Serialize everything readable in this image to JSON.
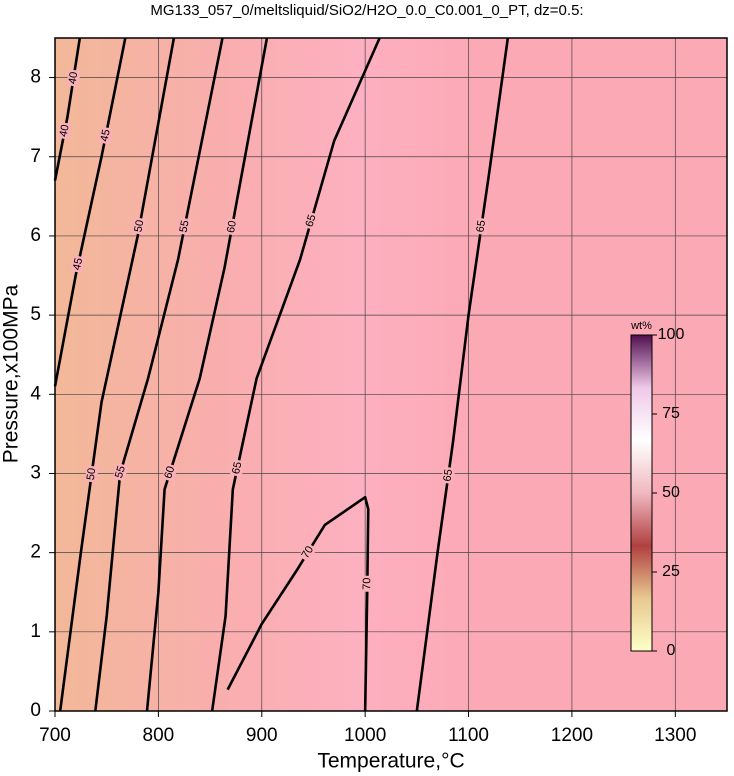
{
  "chart_data": {
    "type": "contour",
    "title": "MG133_057_0/meltsliquid/SiO2/H2O_0.0_C0.001_0_PT, dz=0.5:",
    "xlabel": "Temperature,°C",
    "ylabel": "Pressure,x100MPa",
    "xlim": [
      700,
      1350
    ],
    "ylim": [
      0,
      8.5
    ],
    "xticks": [
      700,
      800,
      900,
      1000,
      1100,
      1200,
      1300
    ],
    "yticks": [
      0,
      1,
      2,
      3,
      4,
      5,
      6,
      7,
      8
    ],
    "grid": true,
    "line_color": "#000000",
    "contours": [
      {
        "level": 40,
        "x": [
          700,
          712,
          724
        ],
        "y": [
          6.7,
          7.5,
          8.5
        ]
      },
      {
        "level": 45,
        "x": [
          700,
          720,
          745,
          768
        ],
        "y": [
          4.1,
          5.5,
          7,
          8.5
        ]
      },
      {
        "level": 50,
        "x": [
          705,
          725,
          745,
          780,
          815
        ],
        "y": [
          0,
          2,
          3.9,
          6,
          8.5
        ]
      },
      {
        "level": 55,
        "x": [
          739,
          750,
          763,
          790,
          819,
          862
        ],
        "y": [
          0,
          1.2,
          3,
          4.2,
          5.7,
          8.5
        ]
      },
      {
        "level": 60,
        "x": [
          789,
          800,
          806,
          840,
          864,
          905
        ],
        "y": [
          0,
          1.5,
          2.8,
          4.2,
          5.6,
          8.5
        ]
      },
      {
        "level": 65,
        "x": [
          852,
          865,
          872,
          895,
          937,
          970,
          1014
        ],
        "y": [
          0,
          1.2,
          2.8,
          4.2,
          5.7,
          7.2,
          8.5
        ]
      },
      {
        "level": 70,
        "x": [
          867,
          900,
          935,
          961,
          1000,
          1003,
          1002,
          1000
        ],
        "y": [
          0.27,
          1.1,
          1.8,
          2.35,
          2.7,
          2.55,
          1.5,
          0
        ]
      },
      {
        "level": 65,
        "x": [
          1050,
          1070,
          1085,
          1100,
          1120,
          1138
        ],
        "y": [
          0,
          2,
          3.4,
          5,
          6.8,
          8.5
        ]
      }
    ],
    "colorbar": {
      "label": "wt%",
      "lim": [
        0,
        100
      ],
      "ticks": [
        0,
        25,
        50,
        75,
        100
      ],
      "colors": [
        "#ffffc8",
        "#e8c890",
        "#b04040",
        "#f0b8c0",
        "#ffffff",
        "#f0c8e8",
        "#501050"
      ]
    }
  }
}
